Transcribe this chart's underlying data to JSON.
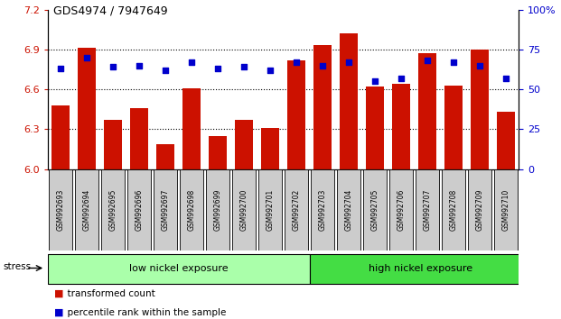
{
  "title": "GDS4974 / 7947649",
  "samples": [
    "GSM992693",
    "GSM992694",
    "GSM992695",
    "GSM992696",
    "GSM992697",
    "GSM992698",
    "GSM992699",
    "GSM992700",
    "GSM992701",
    "GSM992702",
    "GSM992703",
    "GSM992704",
    "GSM992705",
    "GSM992706",
    "GSM992707",
    "GSM992708",
    "GSM992709",
    "GSM992710"
  ],
  "bar_values": [
    6.48,
    6.91,
    6.37,
    6.46,
    6.19,
    6.61,
    6.25,
    6.37,
    6.31,
    6.82,
    6.93,
    7.02,
    6.62,
    6.64,
    6.87,
    6.63,
    6.9,
    6.43
  ],
  "dot_values": [
    63,
    70,
    64,
    65,
    62,
    67,
    63,
    64,
    62,
    67,
    65,
    67,
    55,
    57,
    68,
    67,
    65,
    57
  ],
  "bar_color": "#cc1100",
  "dot_color": "#0000cc",
  "ylim_left": [
    6.0,
    7.2
  ],
  "ylim_right": [
    0,
    100
  ],
  "yticks_left": [
    6.0,
    6.3,
    6.6,
    6.9,
    7.2
  ],
  "yticks_right": [
    0,
    25,
    50,
    75,
    100
  ],
  "ytick_labels_right": [
    "0",
    "25",
    "50",
    "75",
    "100%"
  ],
  "grid_values": [
    6.3,
    6.6,
    6.9
  ],
  "group1_label": "low nickel exposure",
  "group2_label": "high nickel exposure",
  "group1_count": 10,
  "stress_label": "stress",
  "legend_bar_label": "transformed count",
  "legend_dot_label": "percentile rank within the sample",
  "group1_color": "#aaffaa",
  "group2_color": "#44dd44",
  "sample_box_color": "#cccccc",
  "bar_bottom": 6.0,
  "background_color": "#ffffff"
}
